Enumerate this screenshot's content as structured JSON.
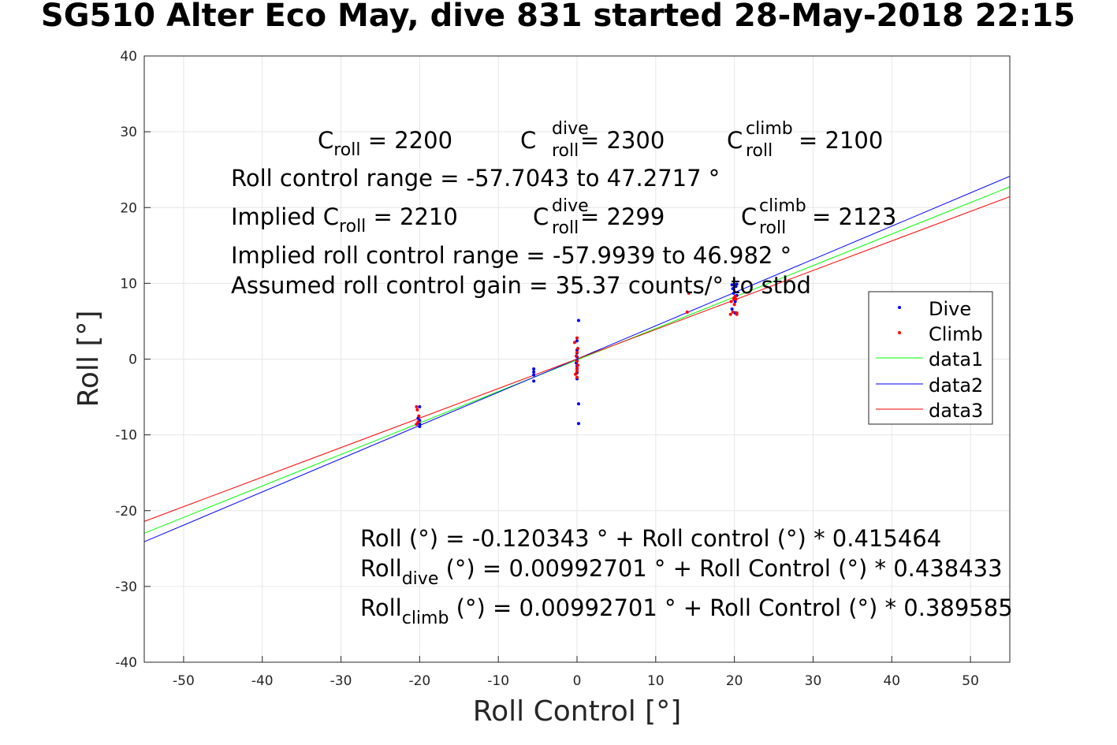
{
  "chart_data": {
    "type": "scatter",
    "title": "SG510 Alter Eco May, dive 831 started 28-May-2018 22:15",
    "xlabel": "Roll Control [°]",
    "ylabel": "Roll [°]",
    "xlim": [
      -55,
      55
    ],
    "ylim": [
      -40,
      40
    ],
    "xticks": [
      -50,
      -40,
      -30,
      -20,
      -10,
      0,
      10,
      20,
      30,
      40,
      50
    ],
    "yticks": [
      -40,
      -30,
      -20,
      -10,
      0,
      10,
      20,
      30,
      40
    ],
    "grid": true,
    "legend_position": "right",
    "series": [
      {
        "name": "Dive",
        "kind": "points",
        "color": "#0000ff",
        "points": [
          [
            -20,
            -6.3
          ],
          [
            -20,
            -8.1
          ],
          [
            -20,
            -8.6
          ],
          [
            -20,
            -8.9
          ],
          [
            -20.2,
            -7.8
          ],
          [
            -5.5,
            -1.3
          ],
          [
            -5.5,
            -1.7
          ],
          [
            -5.5,
            -2.1
          ],
          [
            -5.5,
            -2.9
          ],
          [
            0.2,
            5.1
          ],
          [
            0,
            2.4
          ],
          [
            0,
            1.2
          ],
          [
            0,
            0.8
          ],
          [
            0,
            0.3
          ],
          [
            0,
            -0.2
          ],
          [
            -0.1,
            -0.5
          ],
          [
            0,
            -0.9
          ],
          [
            0,
            -1.3
          ],
          [
            0,
            -1.8
          ],
          [
            0,
            -2.6
          ],
          [
            0.2,
            -5.9
          ],
          [
            0.2,
            -8.5
          ],
          [
            19.7,
            9.8
          ],
          [
            19.8,
            9.3
          ],
          [
            19.9,
            8.7
          ],
          [
            20,
            8.1
          ],
          [
            20.1,
            7.6
          ],
          [
            20.3,
            9.9
          ],
          [
            19.7,
            6.6
          ],
          [
            20.3,
            8.4
          ],
          [
            20.1,
            6.1
          ],
          [
            20.2,
            9.6
          ]
        ]
      },
      {
        "name": "Climb",
        "kind": "points",
        "color": "#ff0000",
        "points": [
          [
            -20.4,
            -6.3
          ],
          [
            -20.3,
            -6.7
          ],
          [
            -20.1,
            -7.5
          ],
          [
            -20.2,
            -8.3
          ],
          [
            -20.4,
            -8.6
          ],
          [
            -0.3,
            2.2
          ],
          [
            0,
            2.8
          ],
          [
            0.1,
            1.4
          ],
          [
            0,
            0.9
          ],
          [
            -0.1,
            0.4
          ],
          [
            0,
            -0.3
          ],
          [
            0.1,
            -0.8
          ],
          [
            0,
            -1.2
          ],
          [
            0,
            -1.6
          ],
          [
            -0.2,
            -2.0
          ],
          [
            0,
            -2.4
          ],
          [
            14.2,
            8.7
          ],
          [
            14.0,
            6.2
          ],
          [
            19.5,
            5.9
          ],
          [
            19.8,
            6.2
          ],
          [
            20,
            7.2
          ],
          [
            20.2,
            7.9
          ],
          [
            20.3,
            6.1
          ],
          [
            19.9,
            8.0
          ],
          [
            20.1,
            8.3
          ],
          [
            19.6,
            7.6
          ],
          [
            20.3,
            5.9
          ]
        ]
      },
      {
        "name": "data1",
        "kind": "line",
        "color": "#00ff00",
        "intercept": -0.120343,
        "slope": 0.415464
      },
      {
        "name": "data2",
        "kind": "line",
        "color": "#0000ff",
        "intercept": 0.00992701,
        "slope": 0.438433
      },
      {
        "name": "data3",
        "kind": "line",
        "color": "#ff0000",
        "intercept": 0.00992701,
        "slope": 0.389585
      }
    ],
    "annotations": {
      "c_roll": {
        "base": "C",
        "sub": "roll",
        "value": " = 2200"
      },
      "c_roll_dive": {
        "base": "C",
        "sup": "dive",
        "sub": "roll",
        "value": " = 2300"
      },
      "c_roll_climb": {
        "base": "C",
        "sup": "climb",
        "sub": "roll",
        "value": " = 2100"
      },
      "roll_control_range": "Roll control range = -57.7043 to 47.2717 °",
      "implied_c_roll": {
        "prefix": "Implied C",
        "sub": "roll",
        "value": " = 2210"
      },
      "implied_c_roll_dive": {
        "base": "C",
        "sup": "dive",
        "sub": "roll",
        "value": " = 2299"
      },
      "implied_c_roll_climb": {
        "base": "C",
        "sup": "climb",
        "sub": "roll",
        "value": " = 2123"
      },
      "implied_range": "Implied roll control range = -57.9939 to 46.982 °",
      "assumed_gain": "Assumed roll control gain = 35.37 counts/° to stbd",
      "fit_all": "Roll (°) = -0.120343 ° + Roll control (°) * 0.415464",
      "fit_dive": {
        "base": "Roll",
        "sub": "dive",
        "value": " (°) = 0.00992701 ° + Roll Control (°) * 0.438433"
      },
      "fit_climb": {
        "base": "Roll",
        "sub": "climb",
        "value": " (°) = 0.00992701 ° + Roll Control (°) * 0.389585"
      }
    }
  }
}
